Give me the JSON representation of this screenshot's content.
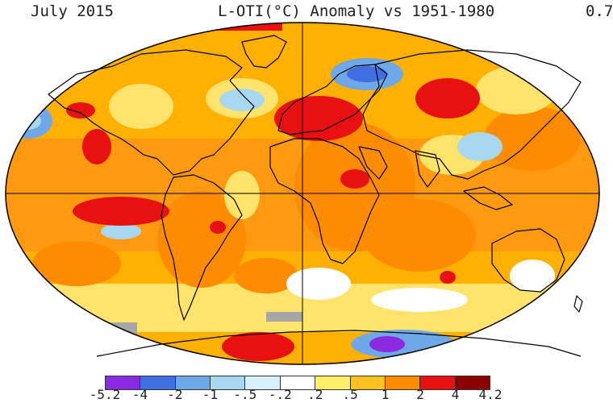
{
  "header": {
    "month_year": "July 2015",
    "anomaly_title": "L-OTI(°C) Anomaly vs 1951-1980",
    "global_mean": "0.7"
  },
  "legend": {
    "tick_labels": [
      "-5.2",
      "-4",
      "-2",
      "-1",
      "-.5",
      "-.2",
      ".2",
      ".5",
      "1",
      "2",
      "4",
      "4.2"
    ],
    "colors": [
      "#8a2be2",
      "#3f6fe0",
      "#6fa8e8",
      "#a8d8f0",
      "#d8f0fa",
      "#ffffff",
      "#ffee66",
      "#ffc020",
      "#ff8c00",
      "#e81010",
      "#8b0000"
    ]
  },
  "map": {
    "projection": "Robinson",
    "ocean_color": "#ffffff",
    "land_outline_color": "#000000"
  }
}
